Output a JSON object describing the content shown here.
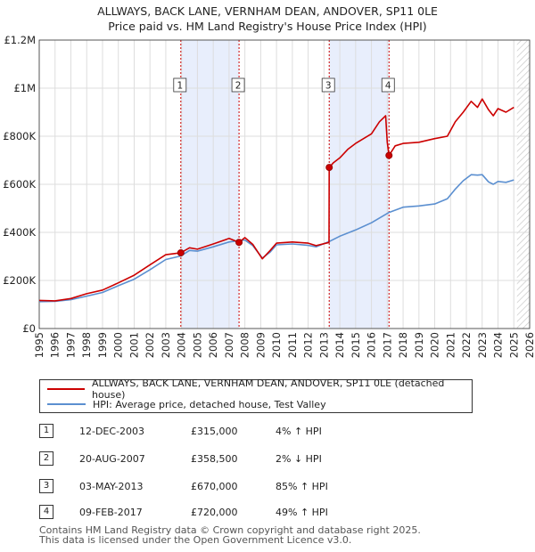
{
  "colors": {
    "property": "#cc0000",
    "hpi": "#5b8fd0",
    "shade": "#e8eefc",
    "hatch": "#cccccc",
    "grid": "#dddddd"
  },
  "chart_data": {
    "type": "line",
    "title": "ALLWAYS, BACK LANE, VERNHAM DEAN, ANDOVER, SP11 0LE",
    "subtitle": "Price paid vs. HM Land Registry's House Price Index (HPI)",
    "xlim": [
      1995,
      2026
    ],
    "ylim": [
      0,
      1200000
    ],
    "x_ticks": [
      "1995",
      "1996",
      "1997",
      "1998",
      "1999",
      "2000",
      "2001",
      "2002",
      "2003",
      "2004",
      "2005",
      "2006",
      "2007",
      "2008",
      "2009",
      "2010",
      "2011",
      "2012",
      "2013",
      "2014",
      "2015",
      "2016",
      "2017",
      "2018",
      "2019",
      "2020",
      "2021",
      "2022",
      "2023",
      "2024",
      "2025",
      "2026"
    ],
    "y_ticks": [
      {
        "value": 0,
        "label": "£0"
      },
      {
        "value": 200000,
        "label": "£200K"
      },
      {
        "value": 400000,
        "label": "£400K"
      },
      {
        "value": 600000,
        "label": "£600K"
      },
      {
        "value": 800000,
        "label": "£800K"
      },
      {
        "value": 1000000,
        "label": "£1M"
      },
      {
        "value": 1200000,
        "label": "£1.2M"
      }
    ],
    "grid": true,
    "future_hatch_from": 2025.2,
    "shaded_spans": [
      [
        2003.95,
        2007.63
      ],
      [
        2013.33,
        2017.11
      ]
    ],
    "series": [
      {
        "name": "ALLWAYS, BACK LANE, VERNHAM DEAN, ANDOVER, SP11 0LE (detached house)",
        "color": "#cc0000",
        "points": [
          [
            1995,
            117000
          ],
          [
            1996,
            115000
          ],
          [
            1997,
            125000
          ],
          [
            1998,
            145000
          ],
          [
            1999,
            160000
          ],
          [
            2000,
            190000
          ],
          [
            2001,
            222000
          ],
          [
            2002,
            265000
          ],
          [
            2003,
            307000
          ],
          [
            2003.95,
            315000
          ],
          [
            2004.5,
            336000
          ],
          [
            2005,
            330000
          ],
          [
            2006,
            352000
          ],
          [
            2007,
            375000
          ],
          [
            2007.63,
            358500
          ],
          [
            2008,
            378000
          ],
          [
            2008.5,
            350000
          ],
          [
            2009.1,
            290000
          ],
          [
            2009.6,
            325000
          ],
          [
            2010,
            355000
          ],
          [
            2011,
            360000
          ],
          [
            2012,
            355000
          ],
          [
            2012.5,
            345000
          ],
          [
            2013.32,
            358000
          ],
          [
            2013.33,
            670000
          ],
          [
            2013.6,
            690000
          ],
          [
            2014,
            710000
          ],
          [
            2014.5,
            745000
          ],
          [
            2015,
            770000
          ],
          [
            2015.5,
            790000
          ],
          [
            2016,
            810000
          ],
          [
            2016.5,
            860000
          ],
          [
            2016.9,
            885000
          ],
          [
            2017.0,
            775000
          ],
          [
            2017.11,
            720000
          ],
          [
            2017.5,
            760000
          ],
          [
            2018,
            770000
          ],
          [
            2019,
            775000
          ],
          [
            2020,
            790000
          ],
          [
            2020.8,
            800000
          ],
          [
            2021.3,
            860000
          ],
          [
            2021.8,
            900000
          ],
          [
            2022.3,
            945000
          ],
          [
            2022.7,
            920000
          ],
          [
            2023,
            955000
          ],
          [
            2023.4,
            910000
          ],
          [
            2023.7,
            885000
          ],
          [
            2024,
            915000
          ],
          [
            2024.5,
            900000
          ],
          [
            2025,
            920000
          ]
        ]
      },
      {
        "name": "HPI: Average price, detached house, Test Valley",
        "color": "#5b8fd0",
        "points": [
          [
            1995,
            112000
          ],
          [
            1996,
            113000
          ],
          [
            1997,
            120000
          ],
          [
            1998,
            135000
          ],
          [
            1999,
            150000
          ],
          [
            2000,
            178000
          ],
          [
            2001,
            205000
          ],
          [
            2002,
            245000
          ],
          [
            2003,
            287000
          ],
          [
            2003.95,
            302000
          ],
          [
            2004.5,
            325000
          ],
          [
            2005,
            322000
          ],
          [
            2006,
            340000
          ],
          [
            2007,
            360000
          ],
          [
            2007.63,
            366000
          ],
          [
            2008,
            368000
          ],
          [
            2008.5,
            345000
          ],
          [
            2009.1,
            293000
          ],
          [
            2009.6,
            318000
          ],
          [
            2010,
            348000
          ],
          [
            2011,
            352000
          ],
          [
            2012,
            346000
          ],
          [
            2012.5,
            340000
          ],
          [
            2013.33,
            362000
          ],
          [
            2014,
            384000
          ],
          [
            2015,
            410000
          ],
          [
            2016,
            440000
          ],
          [
            2017.11,
            483000
          ],
          [
            2018,
            505000
          ],
          [
            2019,
            510000
          ],
          [
            2020,
            518000
          ],
          [
            2020.8,
            540000
          ],
          [
            2021.3,
            580000
          ],
          [
            2021.8,
            615000
          ],
          [
            2022.3,
            640000
          ],
          [
            2022.7,
            638000
          ],
          [
            2023,
            640000
          ],
          [
            2023.4,
            610000
          ],
          [
            2023.7,
            600000
          ],
          [
            2024,
            612000
          ],
          [
            2024.5,
            608000
          ],
          [
            2025,
            618000
          ]
        ]
      }
    ],
    "sale_markers": [
      {
        "label": "1",
        "x": 2003.95,
        "y": 315000
      },
      {
        "label": "2",
        "x": 2007.63,
        "y": 358500
      },
      {
        "label": "3",
        "x": 2013.33,
        "y": 670000
      },
      {
        "label": "4",
        "x": 2017.11,
        "y": 720000
      }
    ]
  },
  "legend": {
    "property": "ALLWAYS, BACK LANE, VERNHAM DEAN, ANDOVER, SP11 0LE (detached house)",
    "hpi": "HPI: Average price, detached house, Test Valley"
  },
  "sales": [
    {
      "marker": "1",
      "date": "12-DEC-2003",
      "price": "£315,000",
      "hpi": "4% ↑ HPI"
    },
    {
      "marker": "2",
      "date": "20-AUG-2007",
      "price": "£358,500",
      "hpi": "2% ↓ HPI"
    },
    {
      "marker": "3",
      "date": "03-MAY-2013",
      "price": "£670,000",
      "hpi": "85% ↑ HPI"
    },
    {
      "marker": "4",
      "date": "09-FEB-2017",
      "price": "£720,000",
      "hpi": "49% ↑ HPI"
    }
  ],
  "footer": {
    "line1": "Contains HM Land Registry data © Crown copyright and database right 2025.",
    "line2": "This data is licensed under the Open Government Licence v3.0."
  }
}
